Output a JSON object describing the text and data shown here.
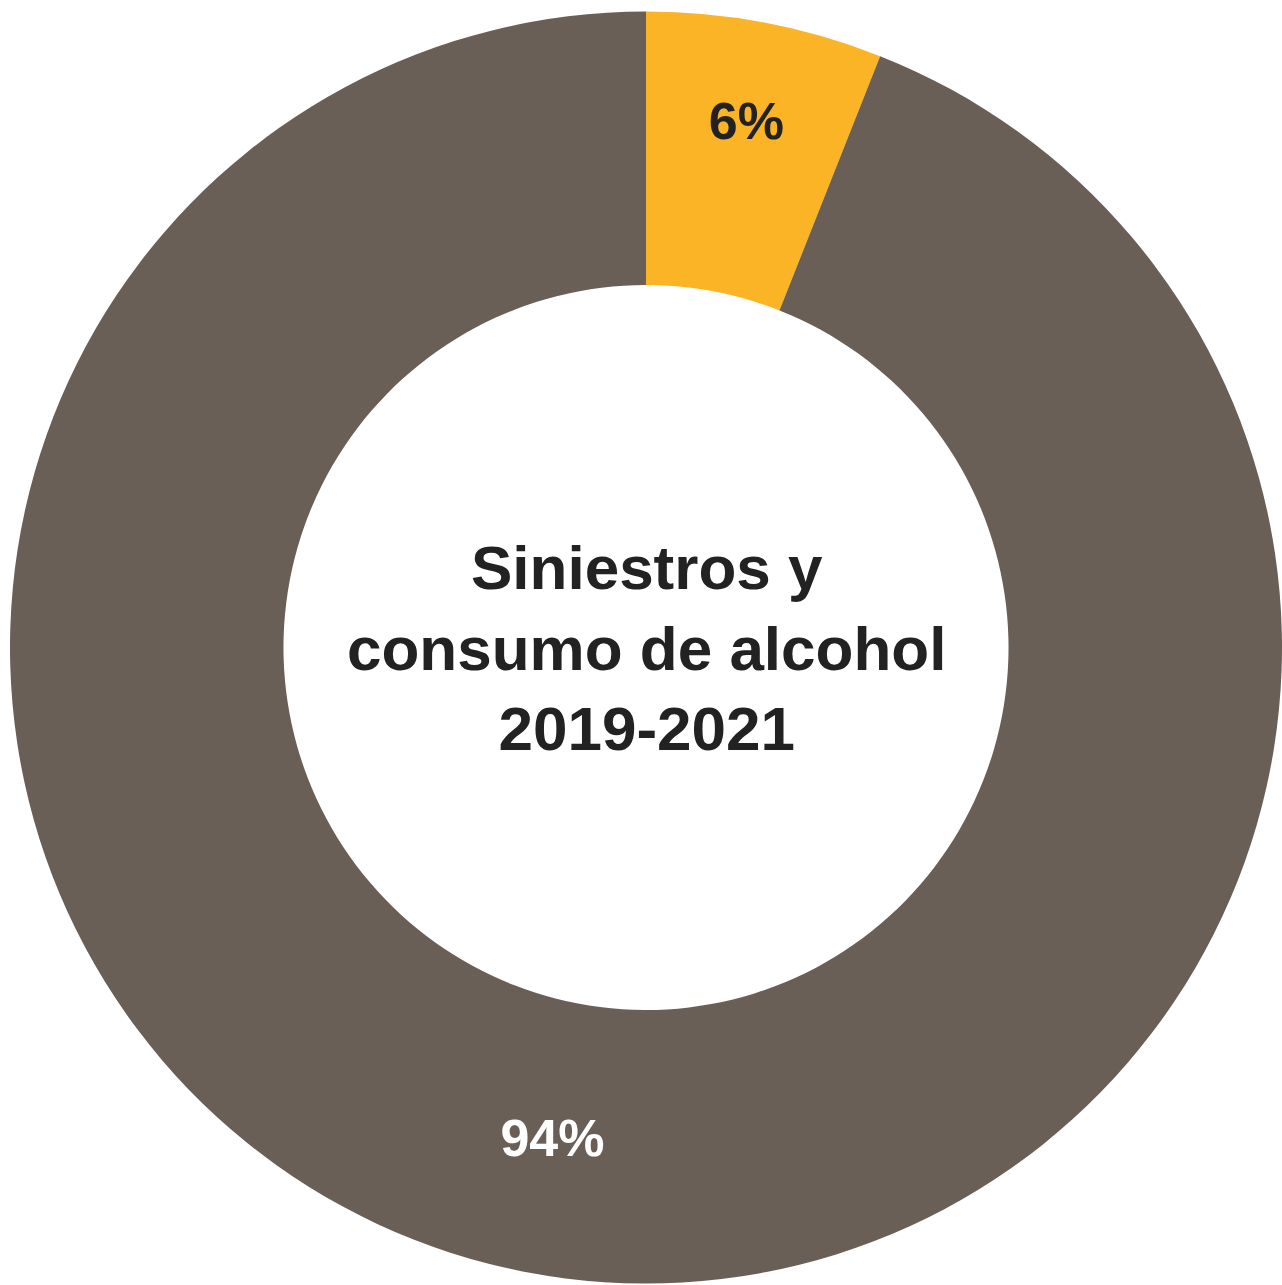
{
  "chart_data": {
    "type": "donut",
    "title": "Siniestros y\nconsumo de alcohol\n2019-2021",
    "categories": [
      null,
      null
    ],
    "values": [
      6,
      94
    ],
    "colors": [
      "#fbb425",
      "#6a5f57"
    ],
    "value_labels": [
      "6%",
      "94%"
    ],
    "legend": false
  }
}
